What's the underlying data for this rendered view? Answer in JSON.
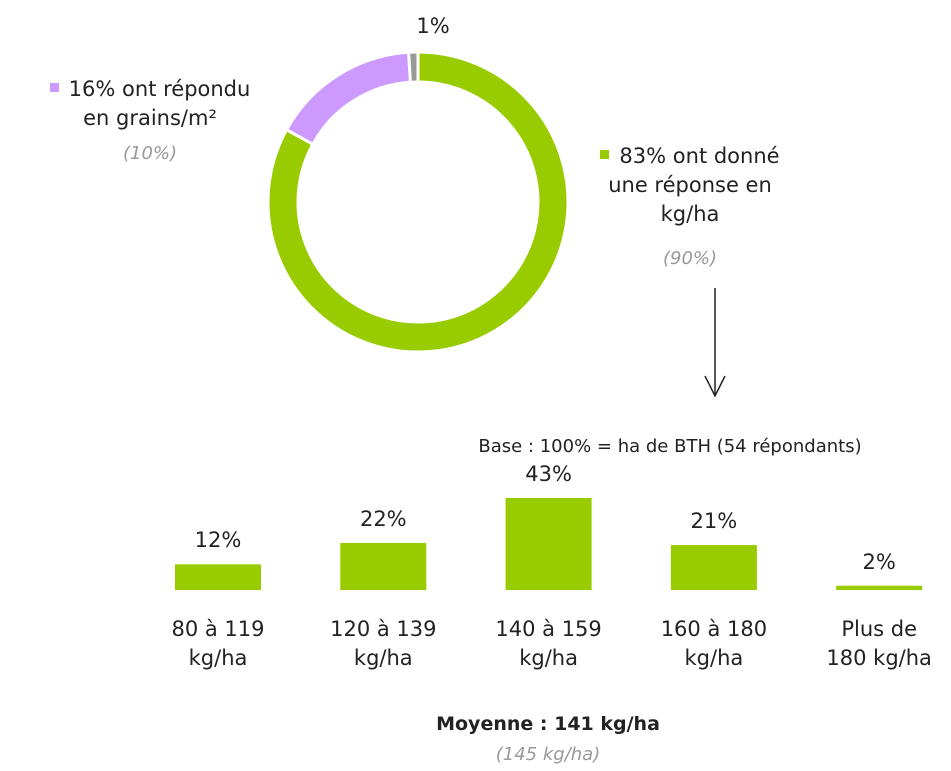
{
  "chart_data": [
    {
      "type": "donut",
      "values": [
        83,
        16,
        1
      ],
      "value_labels": [
        "83%",
        "16%",
        "1%"
      ],
      "labels": [
        "ont donné\nune réponse en\nkg/ha",
        "ont répondu\nen grains/m²",
        null
      ],
      "comparison_labels": [
        "(90%)",
        "(10%)",
        null
      ],
      "colors": [
        "#99cc00",
        "#cc99ff",
        "#999999"
      ]
    },
    {
      "type": "bar",
      "subtitle": "Base : 100% = ha de BTH (54 répondants)",
      "categories": [
        "80 à 119\nkg/ha",
        "120 à 139\nkg/ha",
        "140 à 159\nkg/ha",
        "160 à 180\nkg/ha",
        "Plus de\n180 kg/ha"
      ],
      "values": [
        12,
        22,
        43,
        21,
        2
      ],
      "value_labels": [
        "12%",
        "22%",
        "43%",
        "21%",
        "2%"
      ],
      "color": "#99cc00",
      "annotations": [
        "Moyenne : 141 kg/ha",
        "(145 kg/ha)"
      ]
    }
  ]
}
